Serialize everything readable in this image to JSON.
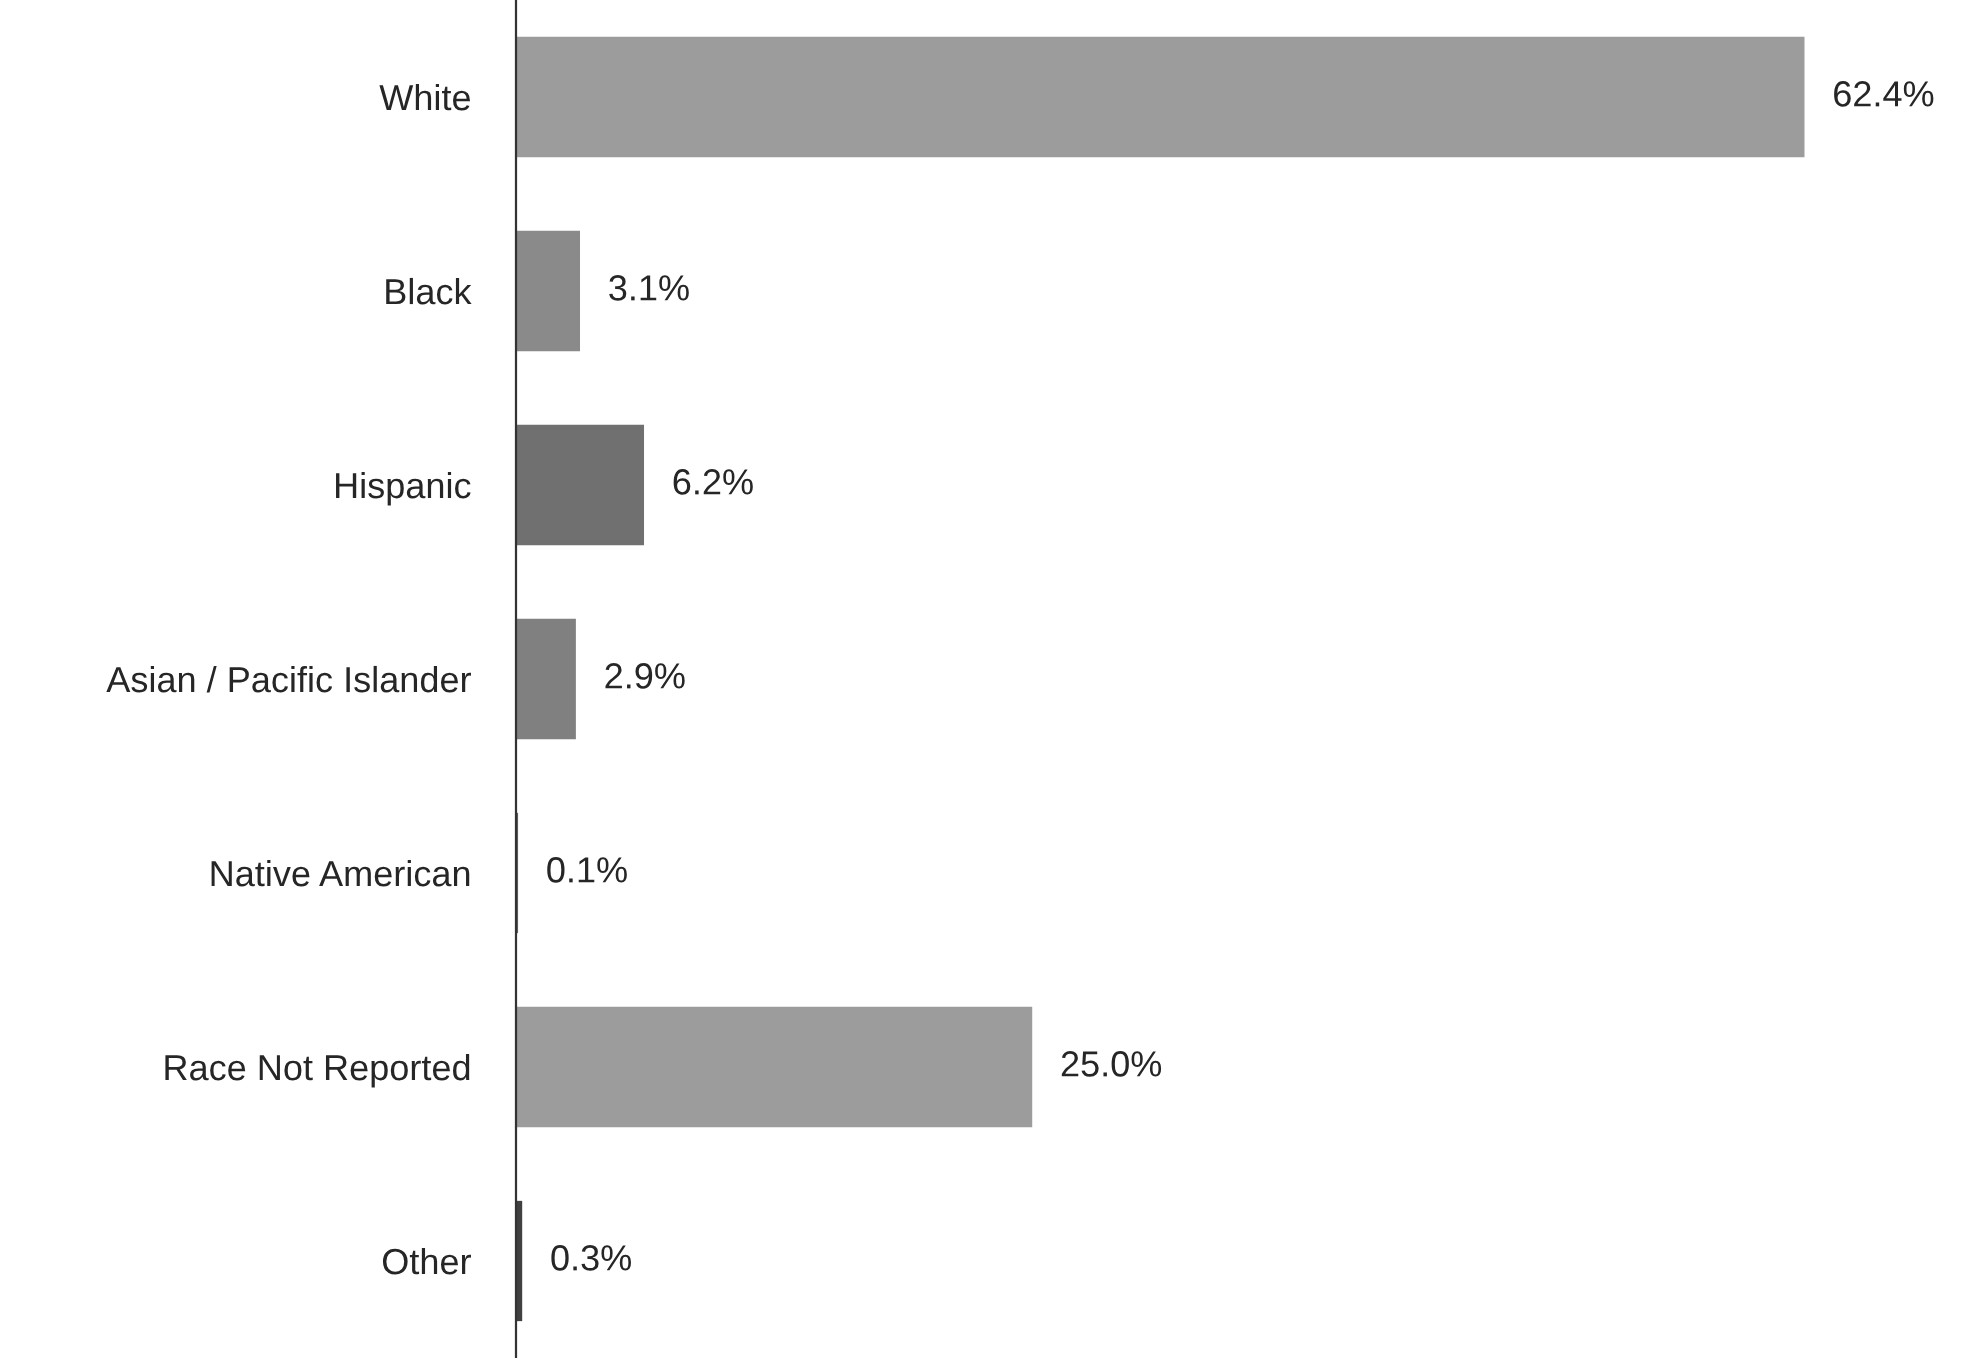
{
  "chart_data": {
    "type": "bar",
    "orientation": "horizontal",
    "categories": [
      "White",
      "Black",
      "Hispanic",
      "Asian / Pacific Islander",
      "Native American",
      "Race Not Reported",
      "Other"
    ],
    "values": [
      62.4,
      3.1,
      6.2,
      2.9,
      0.1,
      25.0,
      0.3
    ],
    "value_labels": [
      "62.4%",
      "3.1%",
      "6.2%",
      "2.9%",
      "0.1%",
      "25.0%",
      "0.3%"
    ],
    "colors": [
      "#9c9c9c",
      "#8a8a8a",
      "#707070",
      "#808080",
      "#606060",
      "#9c9c9c",
      "#404040"
    ],
    "tick_labels": "y",
    "grid": false,
    "legend": false
  }
}
